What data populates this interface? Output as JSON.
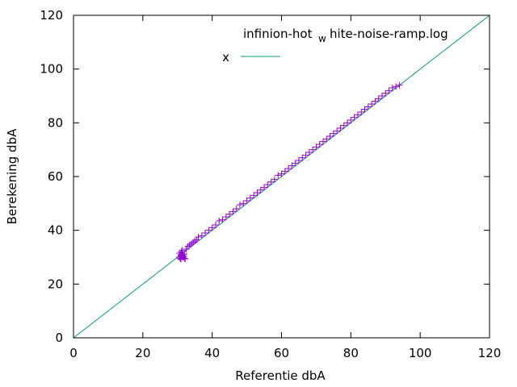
{
  "chart_data": {
    "type": "scatter",
    "title_main": "infinion-hot",
    "title_sub": "w",
    "title_rest": "hite-noise-ramp.log",
    "xlabel": "Referentie dbA",
    "ylabel": "Berekening dbA",
    "xlim": [
      0,
      120
    ],
    "ylim": [
      0,
      120
    ],
    "xticks": [
      0,
      20,
      40,
      60,
      80,
      100,
      120
    ],
    "yticks": [
      0,
      20,
      40,
      60,
      80,
      100,
      120
    ],
    "grid": false,
    "legend_position": "top-right",
    "colors": {
      "points": "#9400d3",
      "line": "#009e73"
    },
    "series": [
      {
        "name": "x",
        "kind": "points",
        "marker": "plus",
        "x": [
          30.5,
          30.8,
          31.0,
          31.2,
          31.5,
          31.8,
          32.0,
          30.6,
          31.1,
          31.6,
          32.0,
          32.2,
          31.0,
          31.4,
          30.9,
          32.5,
          33.0,
          33.5,
          34.0,
          34.5,
          35.0,
          35.5,
          36.0,
          37.0,
          38.0,
          39.0,
          40.0,
          41.0,
          42.0,
          43.0,
          44.0,
          45.0,
          46.0,
          47.0,
          48.0,
          49.0,
          50.0,
          51.0,
          52.0,
          53.0,
          54.0,
          55.0,
          56.0,
          57.0,
          58.0,
          59.0,
          60.0,
          61.0,
          62.0,
          63.0,
          64.0,
          65.0,
          66.0,
          67.0,
          68.0,
          69.0,
          70.0,
          71.0,
          72.0,
          73.0,
          74.0,
          75.0,
          76.0,
          77.0,
          78.0,
          79.0,
          80.0,
          81.0,
          82.0,
          83.0,
          84.0,
          85.0,
          86.0,
          87.0,
          88.0,
          89.0,
          90.0,
          91.0,
          92.0,
          93.0,
          94.0
        ],
        "y": [
          30.0,
          29.5,
          30.5,
          31.0,
          29.8,
          30.2,
          29.6,
          31.5,
          32.0,
          30.8,
          31.2,
          29.4,
          29.2,
          32.5,
          30.9,
          33.0,
          34.0,
          34.5,
          35.0,
          35.5,
          36.0,
          36.5,
          37.5,
          38.0,
          39.0,
          40.0,
          41.0,
          42.0,
          43.5,
          44.0,
          45.0,
          46.0,
          47.0,
          48.0,
          49.5,
          50.0,
          51.0,
          52.0,
          53.0,
          54.0,
          55.0,
          56.0,
          57.0,
          58.0,
          59.0,
          60.5,
          61.0,
          62.0,
          63.0,
          64.0,
          65.0,
          66.0,
          67.0,
          68.0,
          69.0,
          70.0,
          71.0,
          72.0,
          73.0,
          74.0,
          75.0,
          76.0,
          77.0,
          78.0,
          79.0,
          80.0,
          81.0,
          82.0,
          83.0,
          84.0,
          85.0,
          86.0,
          87.0,
          88.0,
          89.0,
          90.0,
          91.0,
          92.0,
          93.0,
          93.5,
          94.0
        ]
      },
      {
        "name": "x",
        "kind": "line",
        "x": [
          0,
          120
        ],
        "y": [
          0,
          120
        ]
      }
    ]
  }
}
